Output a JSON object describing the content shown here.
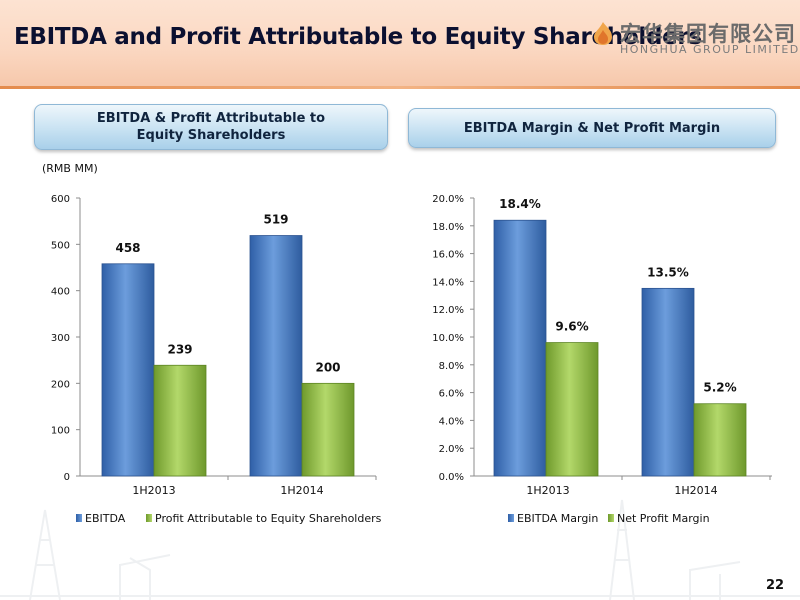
{
  "page": {
    "title": "EBITDA and Profit Attributable to Equity Shareholders",
    "page_number": "22",
    "logo": {
      "cn_text": "宏华集团有限公司",
      "en_text": "HONGHUA GROUP LIMITED"
    }
  },
  "panels": {
    "left_heading": "EBITDA & Profit Attributable to Equity Shareholders",
    "right_heading": "EBITDA Margin & Net Profit Margin",
    "unit_label": "(RMB MM)"
  },
  "colors": {
    "blue": "#4a7fc8",
    "green": "#96c24a",
    "header_accent": "#e48b4c"
  },
  "chart_data": [
    {
      "type": "bar",
      "categories": [
        "1H2013",
        "1H2014"
      ],
      "series": [
        {
          "name": "EBITDA",
          "values": [
            458,
            519
          ],
          "labels": [
            "458",
            "519"
          ],
          "color": "#4a7fc8"
        },
        {
          "name": "Profit Attributable to Equity Shareholders",
          "values": [
            239,
            200
          ],
          "labels": [
            "239",
            "200"
          ],
          "color": "#96c24a"
        }
      ],
      "ylim": [
        0,
        600
      ],
      "yticks": [
        0,
        100,
        200,
        300,
        400,
        500,
        600
      ],
      "ytick_labels": [
        "0",
        "100",
        "200",
        "300",
        "400",
        "500",
        "600"
      ],
      "legend": "bottom",
      "grid": false
    },
    {
      "type": "bar",
      "categories": [
        "1H2013",
        "1H2014"
      ],
      "series": [
        {
          "name": "EBITDA Margin",
          "values": [
            18.4,
            13.5
          ],
          "labels": [
            "18.4%",
            "13.5%"
          ],
          "color": "#4a7fc8"
        },
        {
          "name": "Net Profit Margin",
          "values": [
            9.6,
            5.2
          ],
          "labels": [
            "9.6%",
            "5.2%"
          ],
          "color": "#96c24a"
        }
      ],
      "ylim": [
        0,
        20
      ],
      "yticks": [
        0,
        2,
        4,
        6,
        8,
        10,
        12,
        14,
        16,
        18,
        20
      ],
      "ytick_labels": [
        "0.0%",
        "2.0%",
        "4.0%",
        "6.0%",
        "8.0%",
        "10.0%",
        "12.0%",
        "14.0%",
        "16.0%",
        "18.0%",
        "20.0%"
      ],
      "legend": "bottom",
      "grid": false
    }
  ]
}
